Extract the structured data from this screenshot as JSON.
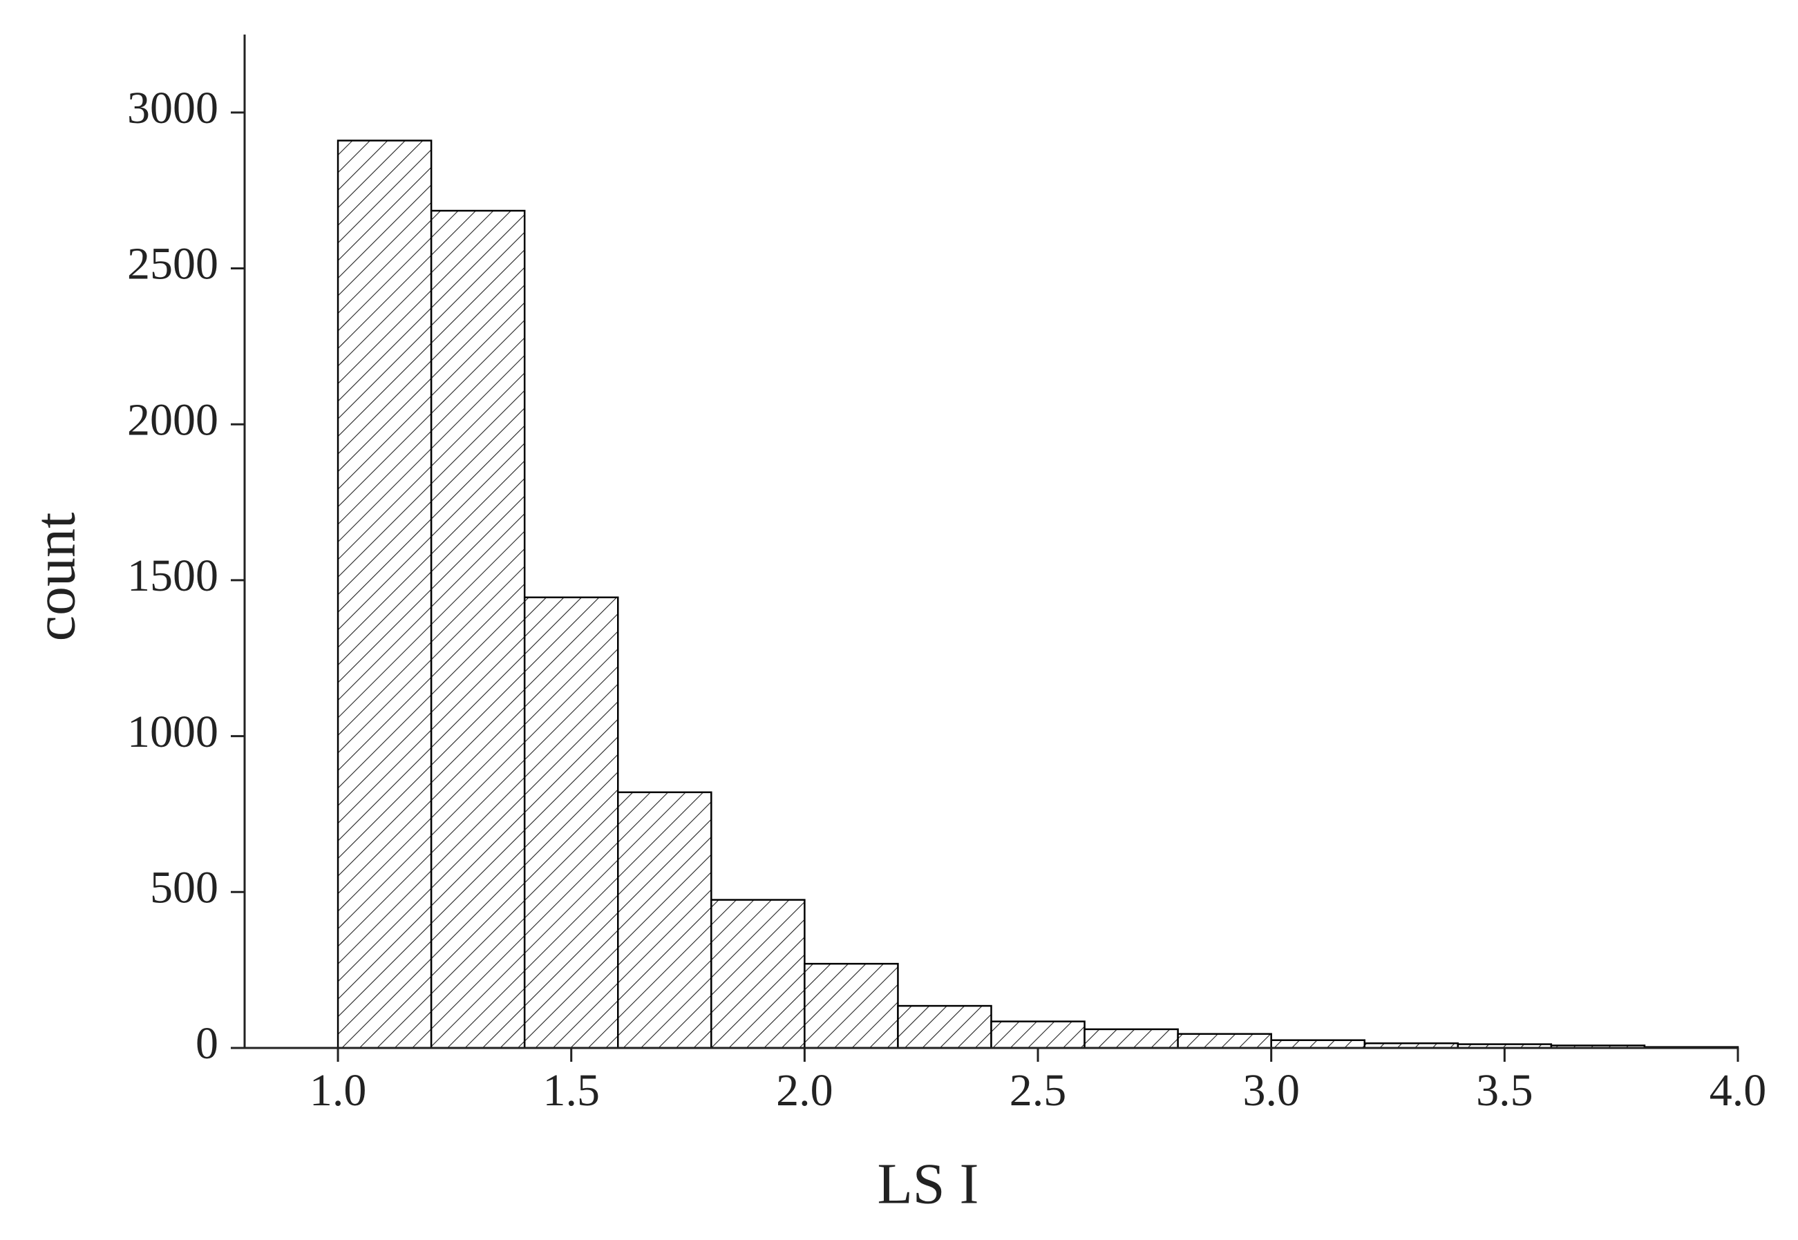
{
  "chart_data": {
    "type": "histogram",
    "x_label": "LS I",
    "y_label": "count",
    "bins": [
      1.0,
      1.2,
      1.4,
      1.6,
      1.8,
      2.0,
      2.2,
      2.4,
      2.6,
      2.8,
      3.0,
      3.2,
      3.4,
      3.6,
      3.8,
      4.0
    ],
    "values": [
      2910,
      2685,
      1445,
      820,
      475,
      270,
      135,
      85,
      60,
      45,
      25,
      15,
      12,
      8,
      3
    ],
    "color": "#000000",
    "xlim": [
      0.8,
      4.0
    ],
    "xticks": [
      {
        "value": 1.0,
        "label": "1.0"
      },
      1.5,
      {
        "value": 2.0,
        "label": "2.0"
      },
      2.5,
      {
        "value": 3.0,
        "label": "3.0"
      },
      3.5,
      {
        "value": 4.0,
        "label": "4.0"
      }
    ],
    "ylim": [
      0,
      3250
    ],
    "yticks": [
      0,
      500,
      1000,
      1500,
      2000,
      2500,
      3000
    ],
    "grid": false
  }
}
